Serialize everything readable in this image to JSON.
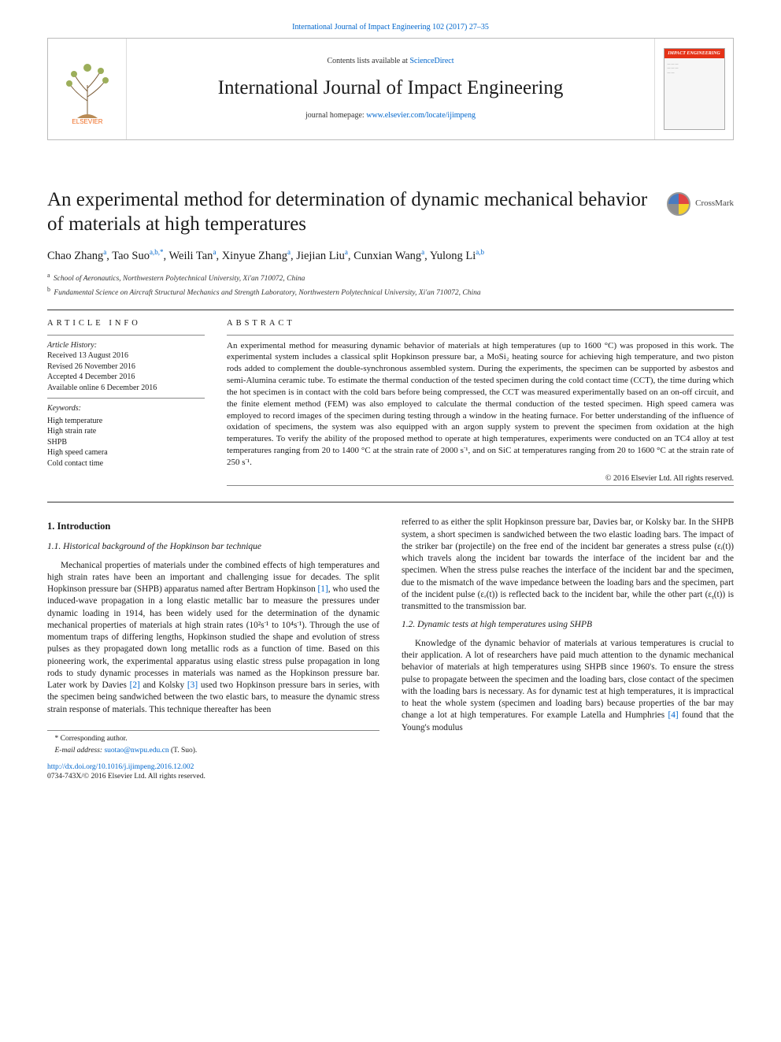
{
  "top_citation": "International Journal of Impact Engineering 102 (2017) 27–35",
  "header": {
    "contents_line_pre": "Contents lists available at ",
    "contents_link": "ScienceDirect",
    "journal_name": "International Journal of Impact Engineering",
    "homepage_pre": "journal homepage: ",
    "homepage_link": "www.elsevier.com/locate/ijimpeng",
    "elsevier_label": "ELSEVIER",
    "cover_title": "IMPACT ENGINEERING"
  },
  "crossmark_label": "CrossMark",
  "title": "An experimental method for determination of dynamic mechanical behavior of materials at high temperatures",
  "authors_html": "Chao Zhang<sup>a</sup>, Tao Suo<sup>a,b,*</sup>, Weili Tan<sup>a</sup>, Xinyue Zhang<sup>a</sup>, Jiejian Liu<sup>a</sup>, Cunxian Wang<sup>a</sup>, Yulong Li<sup>a,b</sup>",
  "affiliations": [
    {
      "sup": "a",
      "text": "School of Aeronautics, Northwestern Polytechnical University, Xi'an 710072, China"
    },
    {
      "sup": "b",
      "text": "Fundamental Science on Aircraft Structural Mechanics and Strength Laboratory, Northwestern Polytechnical University, Xi'an 710072, China"
    }
  ],
  "info": {
    "heading": "ARTICLE INFO",
    "history_label": "Article History:",
    "history": [
      "Received 13 August 2016",
      "Revised 26 November 2016",
      "Accepted 4 December 2016",
      "Available online 6 December 2016"
    ],
    "keywords_label": "Keywords:",
    "keywords": [
      "High temperature",
      "High strain rate",
      "SHPB",
      "High speed camera",
      "Cold contact time"
    ]
  },
  "abstract": {
    "heading": "ABSTRACT",
    "text": "An experimental method for measuring dynamic behavior of materials at high temperatures (up to 1600 °C) was proposed in this work. The experimental system includes a classical split Hopkinson pressure bar, a MoSi₂ heating source for achieving high temperature, and two piston rods added to complement the double-synchronous assembled system. During the experiments, the specimen can be supported by asbestos and semi-Alumina ceramic tube. To estimate the thermal conduction of the tested specimen during the cold contact time (CCT), the time during which the hot specimen is in contact with the cold bars before being compressed, the CCT was measured experimentally based on an on-off circuit, and the finite element method (FEM) was also employed to calculate the thermal conduction of the tested specimen. High speed camera was employed to record images of the specimen during testing through a window in the heating furnace. For better understanding of the influence of oxidation of specimens, the system was also equipped with an argon supply system to prevent the specimen from oxidation at the high temperatures. To verify the ability of the proposed method to operate at high temperatures, experiments were conducted on an TC4 alloy at test temperatures ranging from 20 to 1400 °C at the strain rate of 2000 s⁻¹, and on SiC at temperatures ranging from 20 to 1600 °C at the strain rate of 250 s⁻¹.",
    "copyright": "© 2016 Elsevier Ltd. All rights reserved."
  },
  "body": {
    "h_intro": "1. Introduction",
    "h_11": "1.1. Historical background of the Hopkinson bar technique",
    "p_11": "Mechanical properties of materials under the combined effects of high temperatures and high strain rates have been an important and challenging issue for decades. The split Hopkinson pressure bar (SHPB) apparatus named after Bertram Hopkinson [1], who used the induced-wave propagation in a long elastic metallic bar to measure the pressures under dynamic loading in 1914, has been widely used for the determination of the dynamic mechanical properties of materials at high strain rates (10²s⁻¹ to 10⁴s⁻¹). Through the use of momentum traps of differing lengths, Hopkinson studied the shape and evolution of stress pulses as they propagated down long metallic rods as a function of time. Based on this pioneering work, the experimental apparatus using elastic stress pulse propagation in long rods to study dynamic processes in materials was named as the Hopkinson pressure bar. Later work by Davies [2] and Kolsky [3] used two Hopkinson pressure bars in series, with the specimen being sandwiched between the two elastic bars, to measure the dynamic stress strain response of materials. This technique thereafter has been",
    "p_11b": "referred to as either the split Hopkinson pressure bar, Davies bar, or Kolsky bar. In the SHPB system, a short specimen is sandwiched between the two elastic loading bars. The impact of the striker bar (projectile) on the free end of the incident bar generates a stress pulse (εᵢ(t)) which travels along the incident bar towards the interface of the incident bar and the specimen. When the stress pulse reaches the interface of the incident bar and the specimen, due to the mismatch of the wave impedance between the loading bars and the specimen, part of the incident pulse (εᵣ(t)) is reflected back to the incident bar, while the other part (εₜ(t)) is transmitted to the transmission bar.",
    "h_12": "1.2. Dynamic tests at high temperatures using SHPB",
    "p_12": "Knowledge of the dynamic behavior of materials at various temperatures is crucial to their application. A lot of researchers have paid much attention to the dynamic mechanical behavior of materials at high temperatures using SHPB since 1960's. To ensure the stress pulse to propagate between the specimen and the loading bars, close contact of the specimen with the loading bars is necessary. As for dynamic test at high temperatures, it is impractical to heat the whole system (specimen and loading bars) because properties of the bar may change a lot at high temperatures. For example Latella and Humphries [4] found that the Young's modulus"
  },
  "footer": {
    "corr_label": "* Corresponding author.",
    "email_label": "E-mail address: ",
    "email": "suotao@nwpu.edu.cn",
    "email_name": " (T. Suo).",
    "doi": "http://dx.doi.org/10.1016/j.ijimpeng.2016.12.002",
    "issn": "0734-743X/© 2016 Elsevier Ltd. All rights reserved."
  },
  "colors": {
    "link": "#0066cc",
    "rule": "#333333",
    "cover_red": "#e53217",
    "elsevier_orange": "#ef6a1f"
  }
}
